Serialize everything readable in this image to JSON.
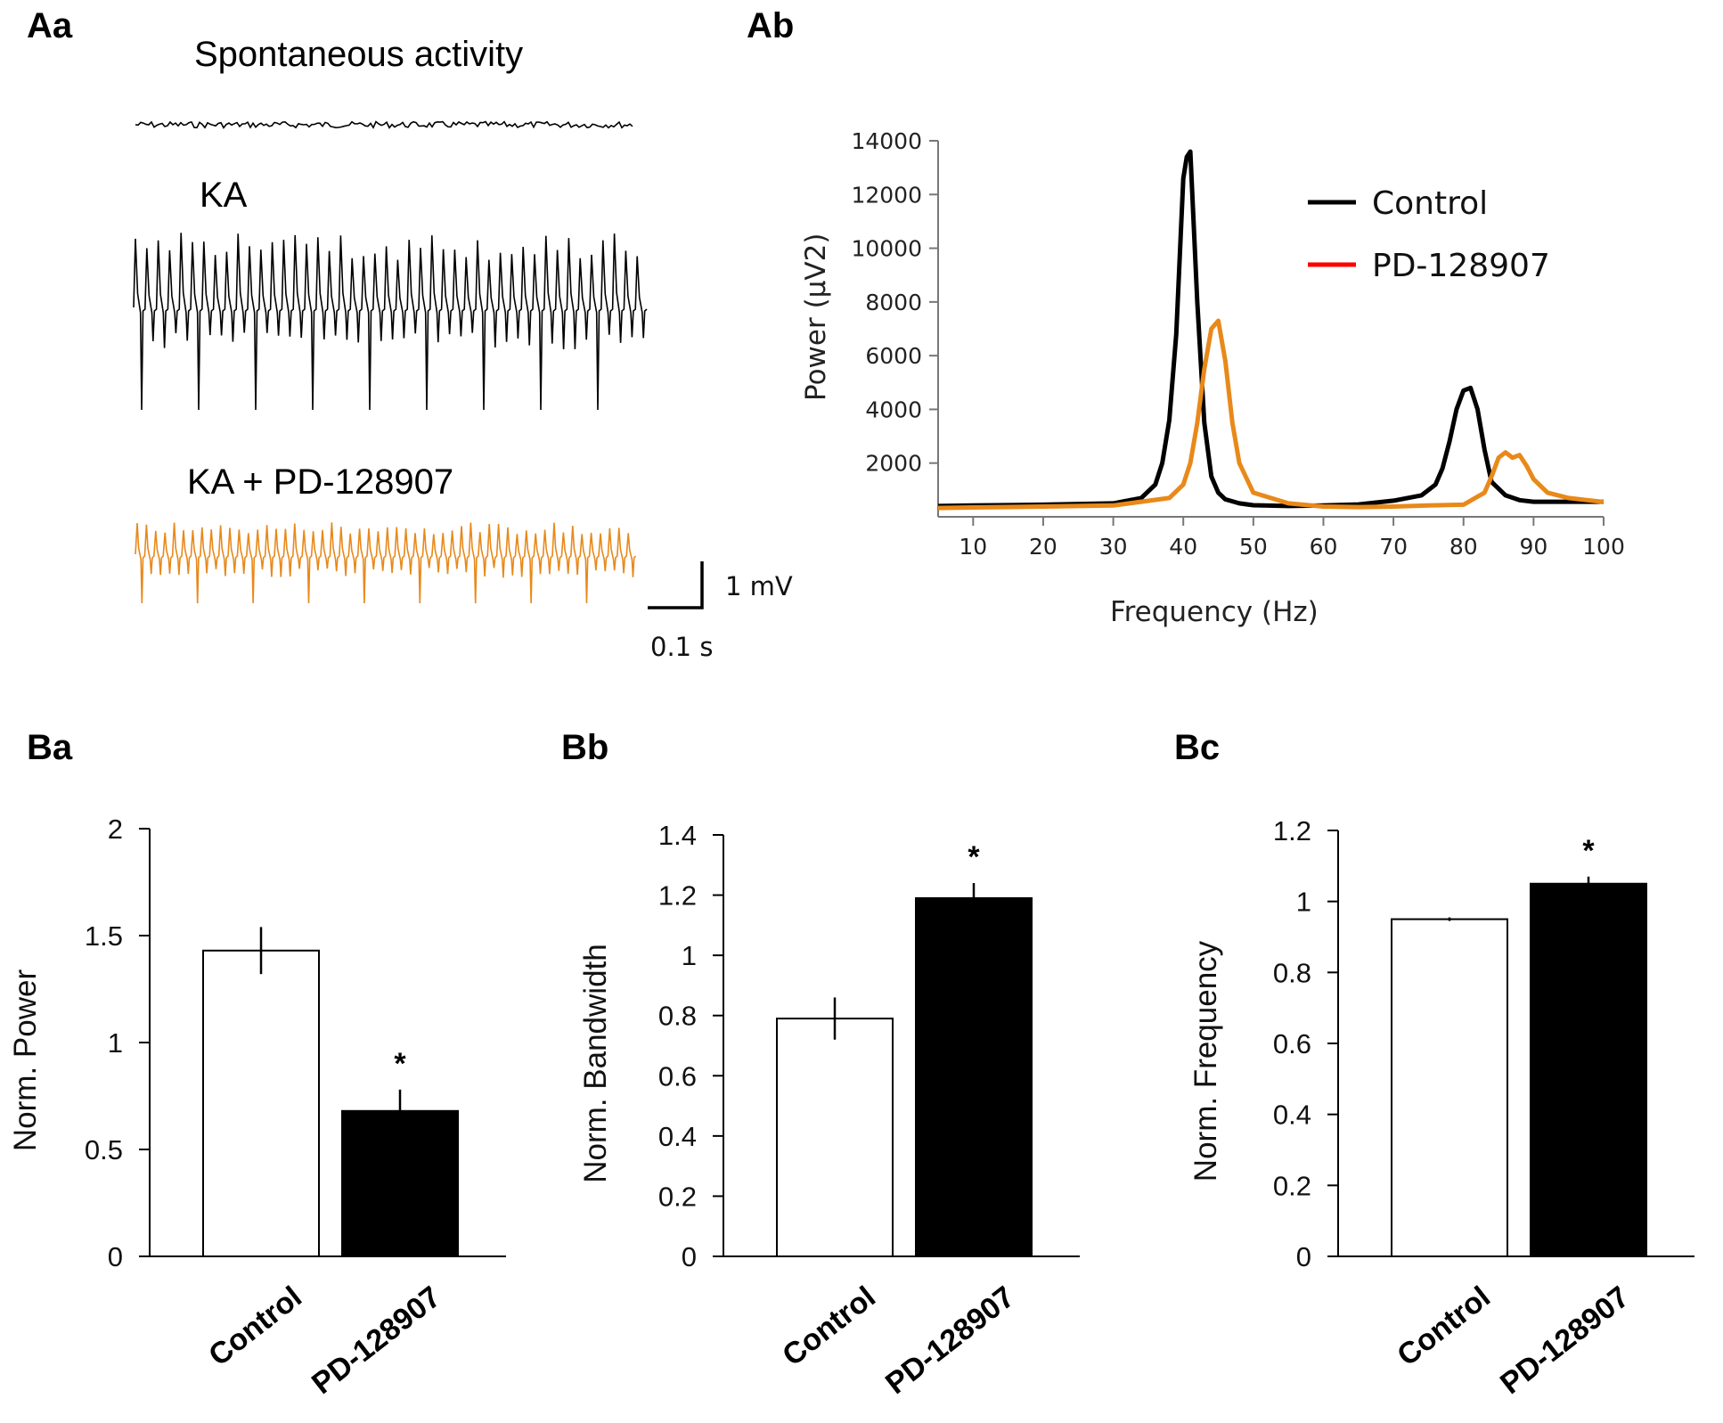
{
  "panels": {
    "Aa": "Aa",
    "Ab": "Ab",
    "Ba": "Ba",
    "Bb": "Bb",
    "Bc": "Bc"
  },
  "traces": {
    "spontaneous_label": "Spontaneous activity",
    "ka_label": "KA",
    "ka_pd_label": "KA + PD-128907",
    "control_color": "#000000",
    "pd_color": "#e8891a",
    "scalebar_v_label": "1 mV",
    "scalebar_h_label": "0.1 s"
  },
  "chart_data": [
    {
      "id": "Ab",
      "type": "line",
      "xlabel": "Frequency (Hz)",
      "ylabel": "Power (µV2)",
      "xlim": [
        5,
        100
      ],
      "ylim": [
        0,
        14000
      ],
      "xticks": [
        10,
        20,
        30,
        40,
        50,
        60,
        70,
        80,
        90,
        100
      ],
      "yticks": [
        2000,
        4000,
        6000,
        8000,
        10000,
        12000,
        14000
      ],
      "legend": {
        "placement": "top-right",
        "legend_line_pd_color": "#ff0000"
      },
      "series": [
        {
          "name": "Control",
          "color": "#000000",
          "x": [
            5,
            10,
            20,
            30,
            34,
            36,
            37,
            38,
            39,
            40,
            40.5,
            41,
            42,
            43,
            44,
            45,
            46,
            48,
            50,
            55,
            60,
            65,
            70,
            74,
            76,
            77,
            78,
            79,
            80,
            81,
            82,
            83,
            84,
            86,
            88,
            90,
            95,
            100
          ],
          "y": [
            400,
            420,
            450,
            500,
            700,
            1200,
            2000,
            3600,
            6800,
            12600,
            13400,
            13600,
            8000,
            3500,
            1500,
            900,
            650,
            500,
            430,
            400,
            420,
            460,
            600,
            800,
            1200,
            1800,
            2800,
            4000,
            4700,
            4800,
            4000,
            2500,
            1300,
            800,
            620,
            560,
            560,
            560
          ]
        },
        {
          "name": "PD-128907",
          "color": "#e8891a",
          "x": [
            5,
            10,
            20,
            30,
            38,
            40,
            41,
            42,
            43,
            44,
            45,
            46,
            47,
            48,
            50,
            55,
            60,
            65,
            70,
            75,
            80,
            83,
            84,
            85,
            86,
            87,
            88,
            89,
            90,
            92,
            95,
            100
          ],
          "y": [
            330,
            350,
            380,
            420,
            700,
            1200,
            2000,
            3500,
            5500,
            7000,
            7300,
            5800,
            3500,
            2000,
            900,
            500,
            380,
            360,
            380,
            420,
            450,
            900,
            1500,
            2200,
            2400,
            2200,
            2300,
            1900,
            1400,
            900,
            700,
            550
          ]
        }
      ]
    },
    {
      "id": "Ba",
      "type": "bar",
      "ylabel": "Norm. Power",
      "ylim": [
        0,
        2
      ],
      "yticks": [
        "0",
        "0.5",
        "1",
        "1.5",
        "2"
      ],
      "categories": [
        "Control",
        "PD-128907"
      ],
      "values": [
        1.43,
        0.68
      ],
      "errors": [
        0.11,
        0.1
      ],
      "fills": [
        "#ffffff",
        "#000000"
      ],
      "significance": [
        "",
        "*"
      ]
    },
    {
      "id": "Bb",
      "type": "bar",
      "ylabel": "Norm. Bandwidth",
      "ylim": [
        0,
        1.4
      ],
      "yticks": [
        "0",
        "0.2",
        "0.4",
        "0.6",
        "0.8",
        "1",
        "1.2",
        "1.4"
      ],
      "categories": [
        "Control",
        "PD-128907"
      ],
      "values": [
        0.79,
        1.19
      ],
      "errors": [
        0.07,
        0.05
      ],
      "fills": [
        "#ffffff",
        "#000000"
      ],
      "significance": [
        "",
        "*"
      ]
    },
    {
      "id": "Bc",
      "type": "bar",
      "ylabel": "Norm. Frequency",
      "ylim": [
        0,
        1.2
      ],
      "yticks": [
        "0",
        "0.2",
        "0.4",
        "0.6",
        "0.8",
        "1",
        "1.2"
      ],
      "categories": [
        "Control",
        "PD-128907"
      ],
      "values": [
        0.95,
        1.05
      ],
      "errors": [
        0.005,
        0.02
      ],
      "fills": [
        "#ffffff",
        "#000000"
      ],
      "significance": [
        "",
        "*"
      ]
    }
  ]
}
